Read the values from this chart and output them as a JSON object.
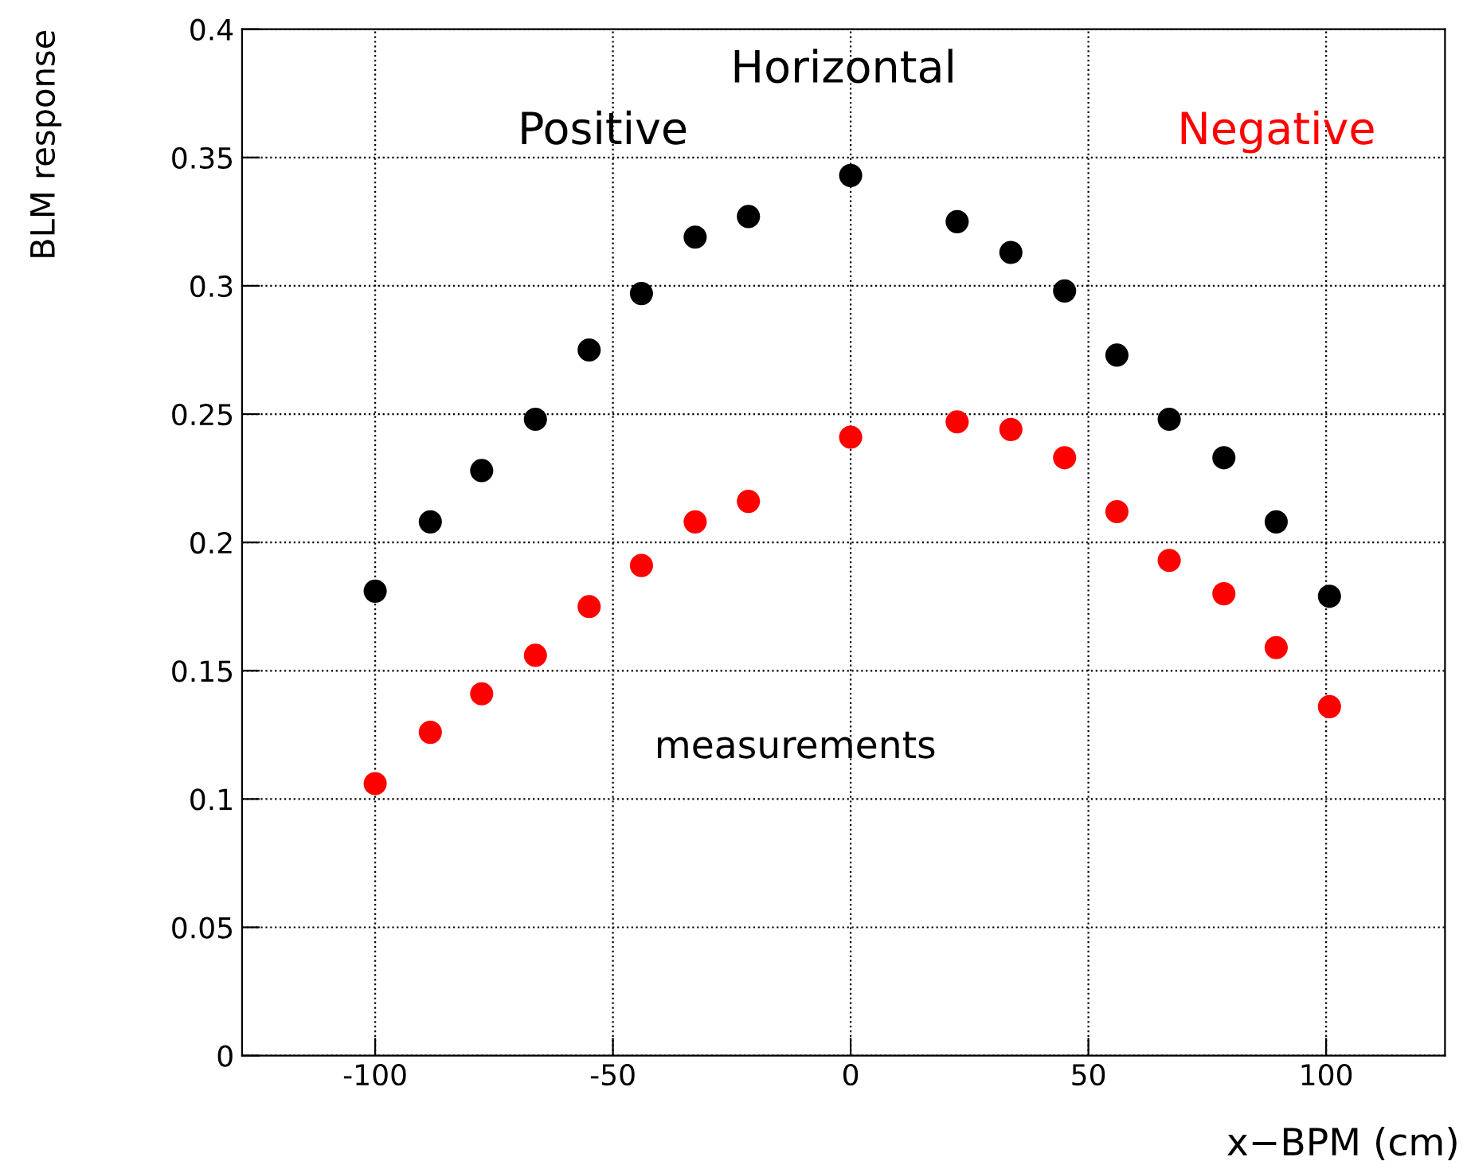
{
  "chart_data": {
    "type": "scatter",
    "title": "Horizontal",
    "xlabel": "x−BPM (cm)",
    "ylabel": "BLM response",
    "annotations": [
      {
        "text": "measurements"
      }
    ],
    "x": [
      -100,
      -88.4,
      -77.6,
      -66.3,
      -55,
      -44,
      -32.7,
      -21.5,
      0,
      22.4,
      33.7,
      45,
      56,
      67,
      78.5,
      89.5,
      100.7
    ],
    "series": [
      {
        "name": "Positive",
        "color": "#000000",
        "values": [
          0.181,
          0.208,
          0.228,
          0.248,
          0.275,
          0.297,
          0.319,
          0.327,
          0.343,
          0.325,
          0.313,
          0.298,
          0.273,
          0.248,
          0.233,
          0.208,
          0.179
        ]
      },
      {
        "name": "Negative",
        "color": "#ff0000",
        "values": [
          0.106,
          0.126,
          0.141,
          0.156,
          0.175,
          0.191,
          0.208,
          0.216,
          0.241,
          0.247,
          0.244,
          0.233,
          0.212,
          0.193,
          0.18,
          0.159,
          0.136
        ]
      }
    ],
    "xlim": [
      -128,
      125
    ],
    "xticks": [
      -100,
      -50,
      0,
      50,
      100
    ],
    "ylim": [
      0,
      0.4
    ],
    "yticks": [
      0,
      0.05,
      0.1,
      0.15,
      0.2,
      0.25,
      0.3,
      0.35,
      0.4
    ],
    "grid": true,
    "marker": "circle"
  }
}
